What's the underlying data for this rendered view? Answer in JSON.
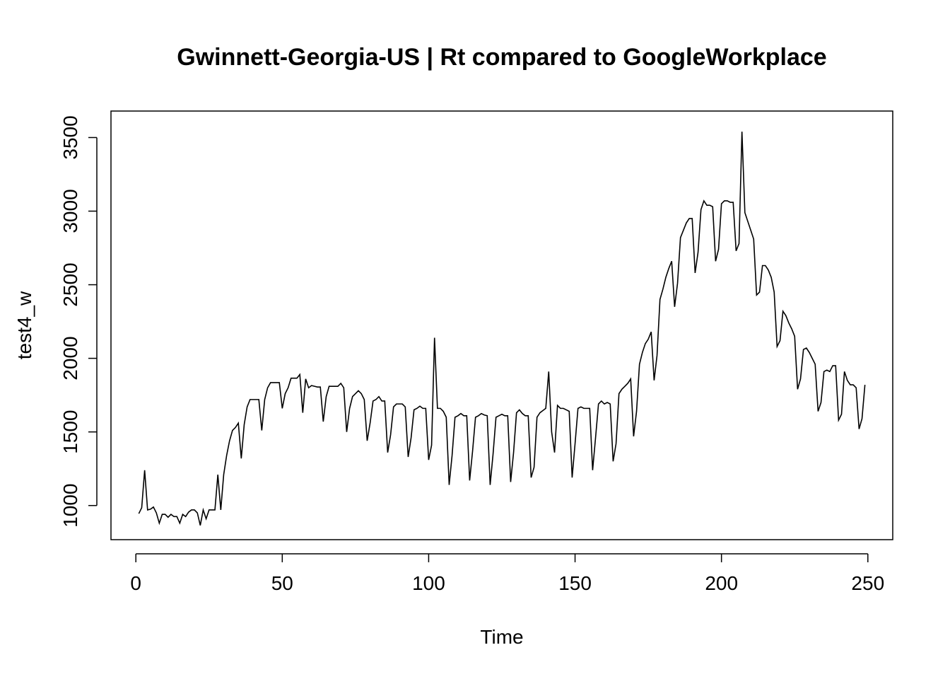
{
  "chart_data": {
    "type": "line",
    "title": "Gwinnett-Georgia-US | Rt compared to GoogleWorkplace",
    "xlabel": "Time",
    "ylabel": "test4_w",
    "xlim": [
      -8.5,
      258.5
    ],
    "ylim": [
      768,
      3680
    ],
    "xticks": [
      0,
      50,
      100,
      150,
      200,
      250
    ],
    "yticks": [
      1000,
      1500,
      2000,
      2500,
      3000,
      3500
    ],
    "line_color": "#000000",
    "grid": false,
    "legend": "none",
    "x_start": 1,
    "series": [
      {
        "values": [
          945,
          985,
          1240,
          970,
          975,
          990,
          950,
          880,
          940,
          940,
          920,
          940,
          925,
          925,
          880,
          940,
          925,
          955,
          970,
          970,
          950,
          865,
          970,
          910,
          970,
          970,
          970,
          1210,
          970,
          1210,
          1340,
          1440,
          1510,
          1530,
          1560,
          1320,
          1550,
          1670,
          1720,
          1720,
          1720,
          1720,
          1510,
          1720,
          1800,
          1835,
          1835,
          1835,
          1835,
          1660,
          1760,
          1800,
          1865,
          1865,
          1865,
          1890,
          1630,
          1860,
          1800,
          1815,
          1810,
          1805,
          1805,
          1570,
          1740,
          1810,
          1810,
          1810,
          1810,
          1830,
          1800,
          1500,
          1660,
          1740,
          1760,
          1780,
          1760,
          1720,
          1440,
          1560,
          1710,
          1720,
          1740,
          1710,
          1710,
          1360,
          1480,
          1670,
          1690,
          1690,
          1690,
          1670,
          1330,
          1460,
          1650,
          1660,
          1675,
          1660,
          1660,
          1310,
          1410,
          2140,
          1660,
          1660,
          1640,
          1600,
          1140,
          1340,
          1600,
          1610,
          1625,
          1610,
          1610,
          1170,
          1370,
          1600,
          1610,
          1625,
          1615,
          1610,
          1140,
          1350,
          1600,
          1610,
          1620,
          1610,
          1610,
          1160,
          1360,
          1630,
          1650,
          1625,
          1610,
          1610,
          1190,
          1260,
          1600,
          1630,
          1645,
          1660,
          1910,
          1500,
          1360,
          1680,
          1660,
          1660,
          1650,
          1640,
          1190,
          1420,
          1660,
          1670,
          1660,
          1660,
          1660,
          1240,
          1460,
          1690,
          1710,
          1690,
          1700,
          1690,
          1300,
          1420,
          1760,
          1790,
          1810,
          1830,
          1860,
          1470,
          1640,
          1960,
          2040,
          2100,
          2130,
          2180,
          1850,
          2020,
          2400,
          2470,
          2550,
          2610,
          2660,
          2350,
          2510,
          2820,
          2870,
          2920,
          2950,
          2950,
          2580,
          2720,
          3010,
          3070,
          3040,
          3040,
          3030,
          2660,
          2740,
          3050,
          3070,
          3070,
          3060,
          3060,
          2730,
          2780,
          3540,
          2990,
          2930,
          2870,
          2810,
          2430,
          2450,
          2630,
          2630,
          2600,
          2550,
          2450,
          2080,
          2120,
          2320,
          2290,
          2240,
          2200,
          2150,
          1790,
          1860,
          2060,
          2070,
          2040,
          2000,
          1960,
          1640,
          1700,
          1910,
          1920,
          1910,
          1950,
          1950,
          1580,
          1620,
          1910,
          1850,
          1820,
          1820,
          1800,
          1520,
          1590,
          1820
        ]
      }
    ]
  }
}
